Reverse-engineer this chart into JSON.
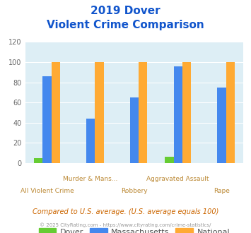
{
  "title_line1": "2019 Dover",
  "title_line2": "Violent Crime Comparison",
  "dover": [
    5,
    0,
    0,
    6,
    0
  ],
  "massachusetts": [
    86,
    44,
    65,
    96,
    75
  ],
  "national": [
    100,
    100,
    100,
    100,
    100
  ],
  "dover_color": "#66cc33",
  "mass_color": "#4488ee",
  "national_color": "#ffaa33",
  "ylim": [
    0,
    120
  ],
  "yticks": [
    0,
    20,
    40,
    60,
    80,
    100,
    120
  ],
  "plot_bg_color": "#ddeef5",
  "fig_bg_color": "#ffffff",
  "title_color": "#1155cc",
  "xlabel_top": [
    "Murder & Mans...",
    "Aggravated Assault"
  ],
  "xlabel_top_idx": [
    1,
    3
  ],
  "xlabel_bot": [
    "All Violent Crime",
    "Robbery",
    "Rape"
  ],
  "xlabel_bot_idx": [
    0,
    2,
    4
  ],
  "xlabel_color": "#bb8833",
  "footer_text": "Compared to U.S. average. (U.S. average equals 100)",
  "copyright_text": "© 2025 CityRating.com - https://www.cityrating.com/crime-statistics/",
  "legend_labels": [
    "Dover",
    "Massachusetts",
    "National"
  ],
  "legend_color": "#555555",
  "footer_color": "#cc6600",
  "copyright_color": "#999999"
}
